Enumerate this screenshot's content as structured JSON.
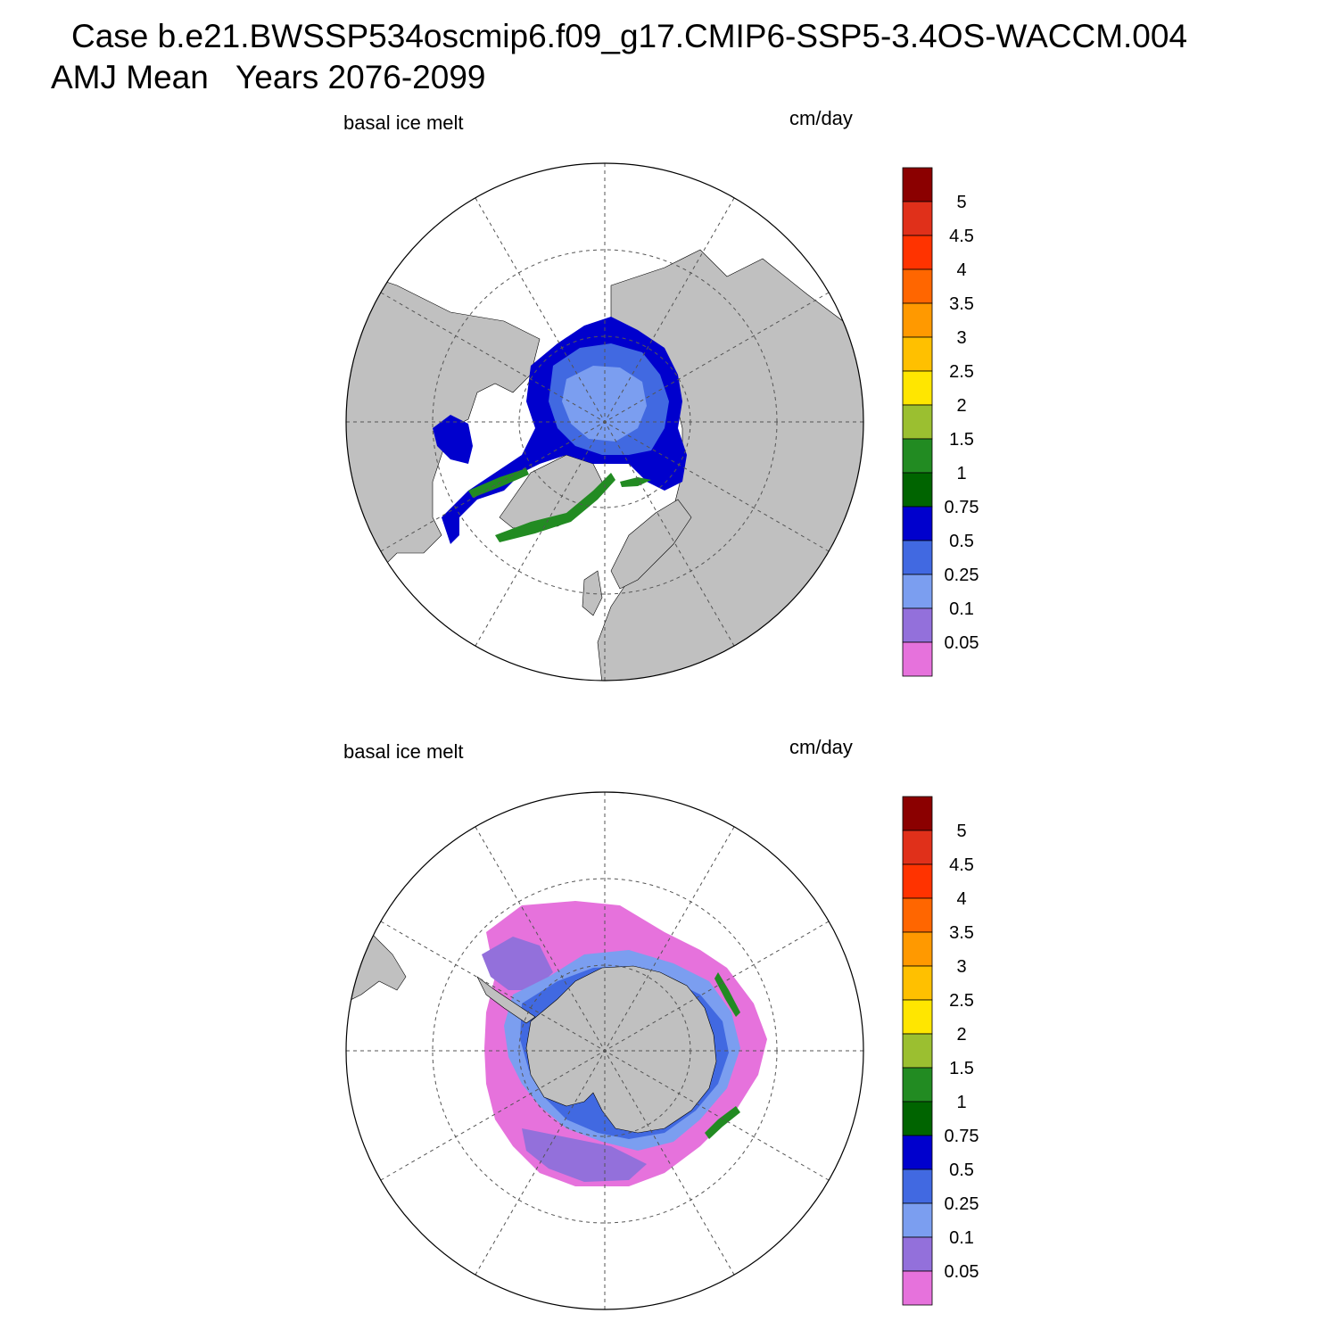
{
  "title": {
    "case": "Case b.e21.BWSSP534oscmip6.f09_g17.CMIP6-SSP5-3.4OS-WACCM.004",
    "subtitle": "AMJ Mean   Years 2076-2099"
  },
  "panels": [
    {
      "id": "north",
      "left_label": "basal ice melt",
      "right_label": "cm/day"
    },
    {
      "id": "south",
      "left_label": "basal ice melt",
      "right_label": "cm/day"
    }
  ],
  "colorbar": {
    "labels": [
      "5",
      "4.5",
      "4",
      "3.5",
      "3",
      "2.5",
      "2",
      "1.5",
      "1",
      "0.75",
      "0.5",
      "0.25",
      "0.1",
      "0.05"
    ],
    "colors": [
      "#8b0000",
      "#e0301a",
      "#ff3300",
      "#ff6600",
      "#ff9900",
      "#ffc000",
      "#ffe600",
      "#9bbf30",
      "#228b22",
      "#006400",
      "#0000cd",
      "#4169e1",
      "#7b9ef0",
      "#9370db",
      "#e672dc"
    ]
  },
  "colors": {
    "land": "#c0c0c0",
    "ocean": "#ffffff",
    "grid": "#555555"
  }
}
